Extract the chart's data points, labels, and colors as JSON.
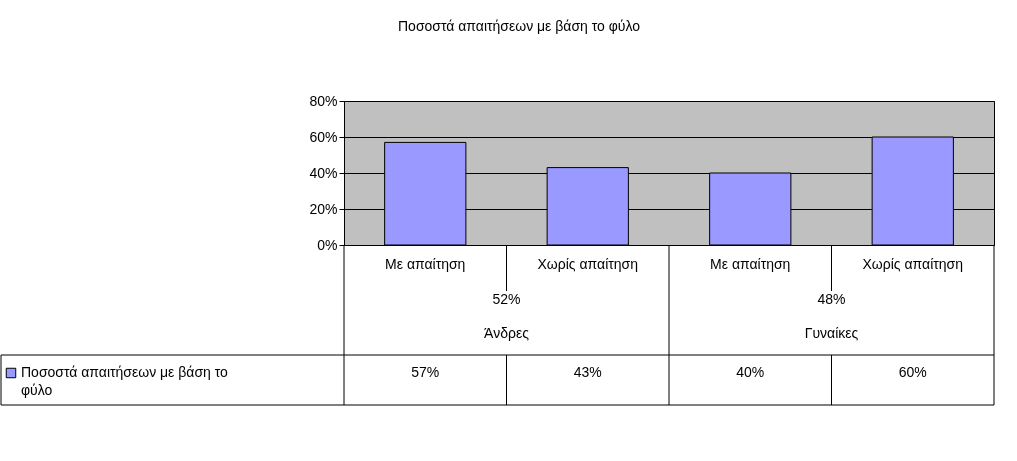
{
  "chart_data": {
    "type": "bar",
    "title": "Ποσοστά απαιτήσεων με βάση το φύλο",
    "categories": [
      "Με απαίτηση",
      "Χωρίς απαίτηση",
      "Με απαίτηση",
      "Χωρίς απαίτηση"
    ],
    "series": [
      {
        "name": "Ποσοστά απαιτήσεων με βάση το φύλο",
        "color": "#9999ff",
        "values": [
          57,
          43,
          40,
          60
        ]
      }
    ],
    "ylim": [
      0,
      80
    ],
    "yticks": [
      {
        "value": 0,
        "label": "0%"
      },
      {
        "value": 20,
        "label": "20%"
      },
      {
        "value": 40,
        "label": "40%"
      },
      {
        "value": 60,
        "label": "60%"
      },
      {
        "value": 80,
        "label": "80%"
      }
    ],
    "value_labels": [
      "57%",
      "43%",
      "40%",
      "60%"
    ],
    "annotations": [
      "52%",
      "Άνδρες",
      "48%",
      "Γυναίκες"
    ],
    "grid": "y",
    "legend": "bottom left"
  }
}
